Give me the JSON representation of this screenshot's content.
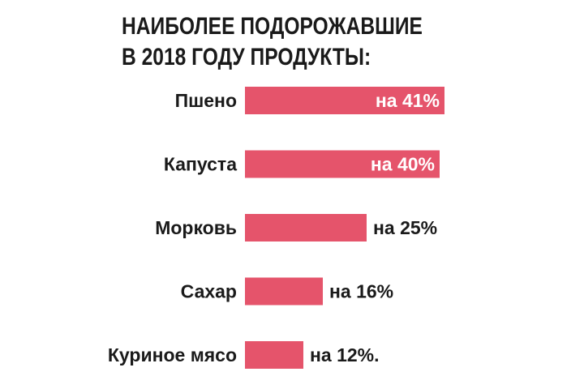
{
  "title_lines": [
    "НАИБОЛЕЕ ПОДОРОЖАВШИЕ",
    "В 2018 ГОДУ ПРОДУКТЫ:"
  ],
  "colors": {
    "bar": "#e5546b",
    "text": "#1a1a1a",
    "label_inside": "#ffffff"
  },
  "chart_data": {
    "type": "bar",
    "orientation": "horizontal",
    "title": "НАИБОЛЕЕ ПОДОРОЖАВШИЕ В 2018 ГОДУ ПРОДУКТЫ:",
    "categories": [
      "Пшено",
      "Капуста",
      "Морковь",
      "Сахар",
      "Куриное мясо"
    ],
    "values": [
      41,
      40,
      25,
      16,
      12
    ],
    "value_labels": [
      "на 41%",
      "на 40%",
      "на 25%",
      "на 16%",
      "на 12%."
    ],
    "unit": "%",
    "xlim": [
      0,
      41
    ],
    "grid": false,
    "legend": "none"
  }
}
